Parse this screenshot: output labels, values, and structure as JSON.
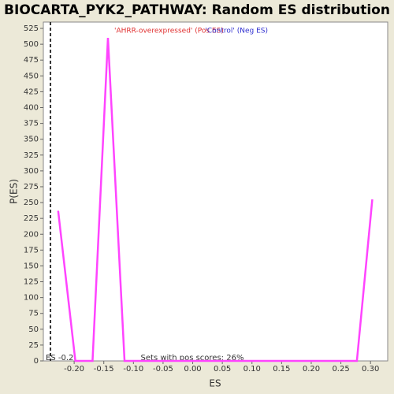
{
  "chart_data": {
    "type": "line",
    "title": "BIOCARTA_PYK2_PATHWAY: Random ES distribution",
    "x_label": "ES",
    "y_label": "P(ES)",
    "legend": [
      "'AHRR-overexpressed' (Pos ES)",
      "'Control' (Neg ES)"
    ],
    "legend_colors": [
      "#e03030",
      "#3030d0"
    ],
    "annotation": "Sets with pos scores: 26%",
    "marker_label": "ES -0.2",
    "marker_x": -0.24,
    "series": [
      {
        "name": "P(ES)",
        "color": "#ff44ff",
        "x": [
          -0.227,
          -0.198,
          -0.169,
          -0.143,
          -0.115,
          0.277,
          0.303
        ],
        "values": [
          237,
          0,
          0,
          510,
          0,
          0,
          255
        ]
      }
    ],
    "xlim": [
      -0.252,
      0.329
    ],
    "ylim": [
      0,
      535
    ],
    "xticks": [
      {
        "value": -0.2,
        "label": "-0.20"
      },
      {
        "value": -0.15,
        "label": "-0.15"
      },
      {
        "value": -0.1,
        "label": "-0.10"
      },
      {
        "value": -0.05,
        "label": "-0.05"
      },
      {
        "value": 0,
        "label": "0.00"
      },
      {
        "value": 0.05,
        "label": "0.05"
      },
      {
        "value": 0.1,
        "label": "0.10"
      },
      {
        "value": 0.15,
        "label": "0.15"
      },
      {
        "value": 0.2,
        "label": "0.20"
      },
      {
        "value": 0.25,
        "label": "0.25"
      },
      {
        "value": 0.3,
        "label": "0.30"
      }
    ],
    "yticks": [
      0,
      25,
      50,
      75,
      100,
      125,
      150,
      175,
      200,
      225,
      250,
      275,
      300,
      325,
      350,
      375,
      400,
      425,
      450,
      475,
      500,
      525
    ]
  }
}
